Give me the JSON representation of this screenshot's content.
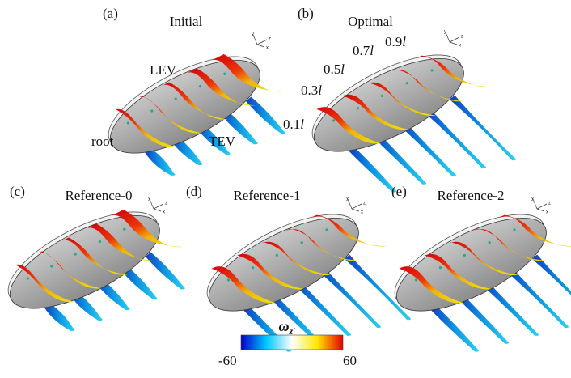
{
  "panels": [
    {
      "label": "(a)",
      "title": "Initial"
    },
    {
      "label": "(b)",
      "title": "Optimal"
    },
    {
      "label": "(c)",
      "title": "Reference-0"
    },
    {
      "label": "(d)",
      "title": "Reference-1"
    },
    {
      "label": "(e)",
      "title": "Reference-2"
    }
  ],
  "annotations": {
    "lev": "LEV",
    "tev": "TEV",
    "root": "root"
  },
  "span_labels": [
    {
      "fraction": "0.1",
      "symbol": "l"
    },
    {
      "fraction": "0.3",
      "symbol": "l"
    },
    {
      "fraction": "0.5",
      "symbol": "l"
    },
    {
      "fraction": "0.7",
      "symbol": "l"
    },
    {
      "fraction": "0.9",
      "symbol": "l"
    }
  ],
  "axes_labels": [
    "y",
    "z",
    "x"
  ],
  "colorbar": {
    "symbol": "ω",
    "subscript": "z′",
    "min": -60,
    "max": 60,
    "colors": [
      "#0000c8",
      "#00c8ff",
      "#ffffff",
      "#ffe600",
      "#e60000"
    ]
  }
}
